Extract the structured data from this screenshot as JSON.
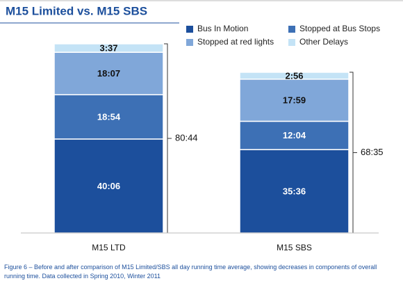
{
  "chart_data": {
    "type": "stacked_bar",
    "title": "M15 Limited vs. M15 SBS",
    "categories": [
      "M15 LTD",
      "M15 SBS"
    ],
    "series": [
      {
        "name": "Bus In Motion",
        "color": "#1c4f9c",
        "values": [
          2406,
          2136
        ],
        "value_labels": [
          "40:06",
          "35:36"
        ]
      },
      {
        "name": "Stopped at Bus Stops",
        "color": "#3d70b5",
        "values": [
          1134,
          724
        ],
        "value_labels": [
          "18:54",
          "12:04"
        ]
      },
      {
        "name": "Stopped at red lights",
        "color": "#80a7d9",
        "values": [
          1087,
          1079
        ],
        "value_labels": [
          "18:07",
          "17:59"
        ]
      },
      {
        "name": "Other Delays",
        "color": "#c4e3f6",
        "values": [
          217,
          176
        ],
        "value_labels": [
          "3:37",
          "2:56"
        ]
      }
    ],
    "totals": [
      4844,
      4115
    ],
    "total_labels": [
      "80:44",
      "68:35"
    ],
    "caption": "Figure 6 – Before and after comparison of M15 Limited/SBS all day running time average, showing decreases in components of overall running time. Data collected in Spring 2010, Winter 2011"
  }
}
